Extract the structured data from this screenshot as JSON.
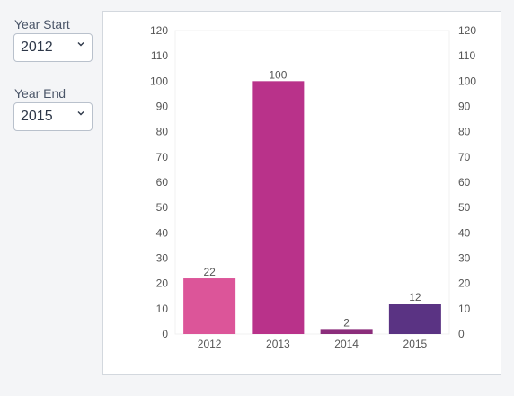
{
  "filters": {
    "year_start": {
      "label": "Year Start",
      "value": "2012"
    },
    "year_end": {
      "label": "Year End",
      "value": "2015"
    }
  },
  "icons": {
    "dropdown": "chevron-down-icon"
  },
  "chart_data": {
    "type": "bar",
    "categories": [
      "2012",
      "2013",
      "2014",
      "2015"
    ],
    "values": [
      22,
      100,
      2,
      12
    ],
    "colors": [
      "#dc5599",
      "#b9328a",
      "#8b2d7b",
      "#5a3383"
    ],
    "data_labels": [
      "22",
      "100",
      "2",
      "12"
    ],
    "ylim": [
      0,
      120
    ],
    "y_ticks": [
      0,
      10,
      20,
      30,
      40,
      50,
      60,
      70,
      80,
      90,
      100,
      110,
      120
    ],
    "y_tick_labels": [
      "0",
      "10",
      "20",
      "30",
      "40",
      "50",
      "60",
      "70",
      "80",
      "90",
      "100",
      "110",
      "120"
    ],
    "right_axis_mirrored": true,
    "grid": false
  }
}
